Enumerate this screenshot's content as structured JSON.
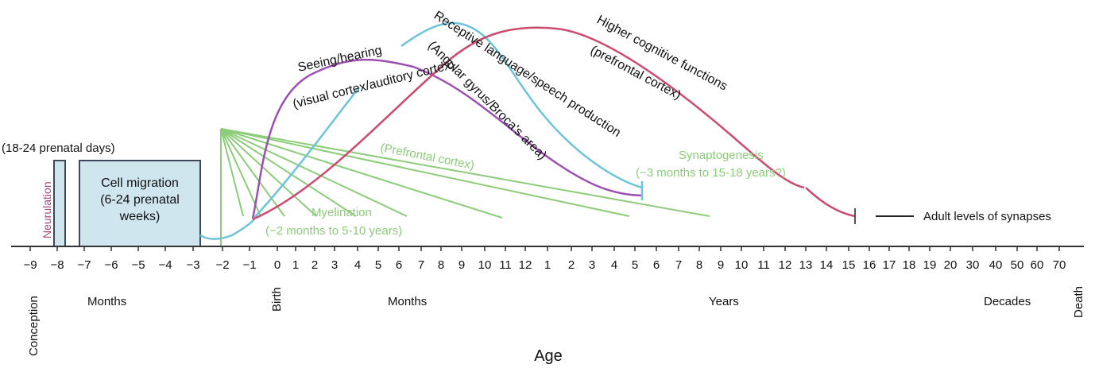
{
  "colors": {
    "magenta": "#a0477f",
    "teal": "#6cc4da",
    "purple": "#9b4fb0",
    "green": "#8ccc7a",
    "red": "#cc4a6e",
    "box_fill": "#cfe6ef",
    "box_stroke": "#3a4a5c"
  },
  "axis": {
    "title": "Age",
    "ticks": [
      "−9",
      "−8",
      "−7",
      "−6",
      "−5",
      "−4",
      "−3",
      "−2",
      "−1",
      "0",
      "1",
      "2",
      "3",
      "4",
      "5",
      "6",
      "7",
      "8",
      "9",
      "10",
      "11",
      "12",
      "1",
      "2",
      "3",
      "4",
      "5",
      "6",
      "7",
      "8",
      "9",
      "10",
      "11",
      "12",
      "13",
      "14",
      "15",
      "16",
      "17",
      "18",
      "19",
      "20",
      "30",
      "40",
      "50",
      "60",
      "70"
    ],
    "segments": {
      "conception": "Conception",
      "months_prenatal": "Months",
      "birth": "Birth",
      "months_postnatal": "Months",
      "years": "Years",
      "decades": "Decades",
      "death": "Death"
    }
  },
  "boxes": {
    "neurulation_days": "(18-24 prenatal days)",
    "neurulation": "Neurulation",
    "cell_migration_line1": "Cell migration",
    "cell_migration_line2": "(6-24 prenatal",
    "cell_migration_line3": "weeks)"
  },
  "curves": {
    "seeing_line1": "Seeing/hearing",
    "seeing_line2": "(visual cortex/auditory cortex)",
    "receptive_line1": "Receptive language/speech production",
    "receptive_line2": "(Angular gyrus/Broca's area)",
    "higher_line1": "Higher cognitive functions",
    "higher_line2": "(prefrontal cortex)"
  },
  "annotations": {
    "prefrontal": "(Prefrontal cortex)",
    "myelination": "Myelination",
    "myelination_range": "(−2 months to 5-10 years)",
    "synaptogenesis": "Synaptogenesis",
    "synaptogenesis_range": "(−3 months to 15-18 years?)",
    "adult_levels": "Adult levels of synapses"
  }
}
